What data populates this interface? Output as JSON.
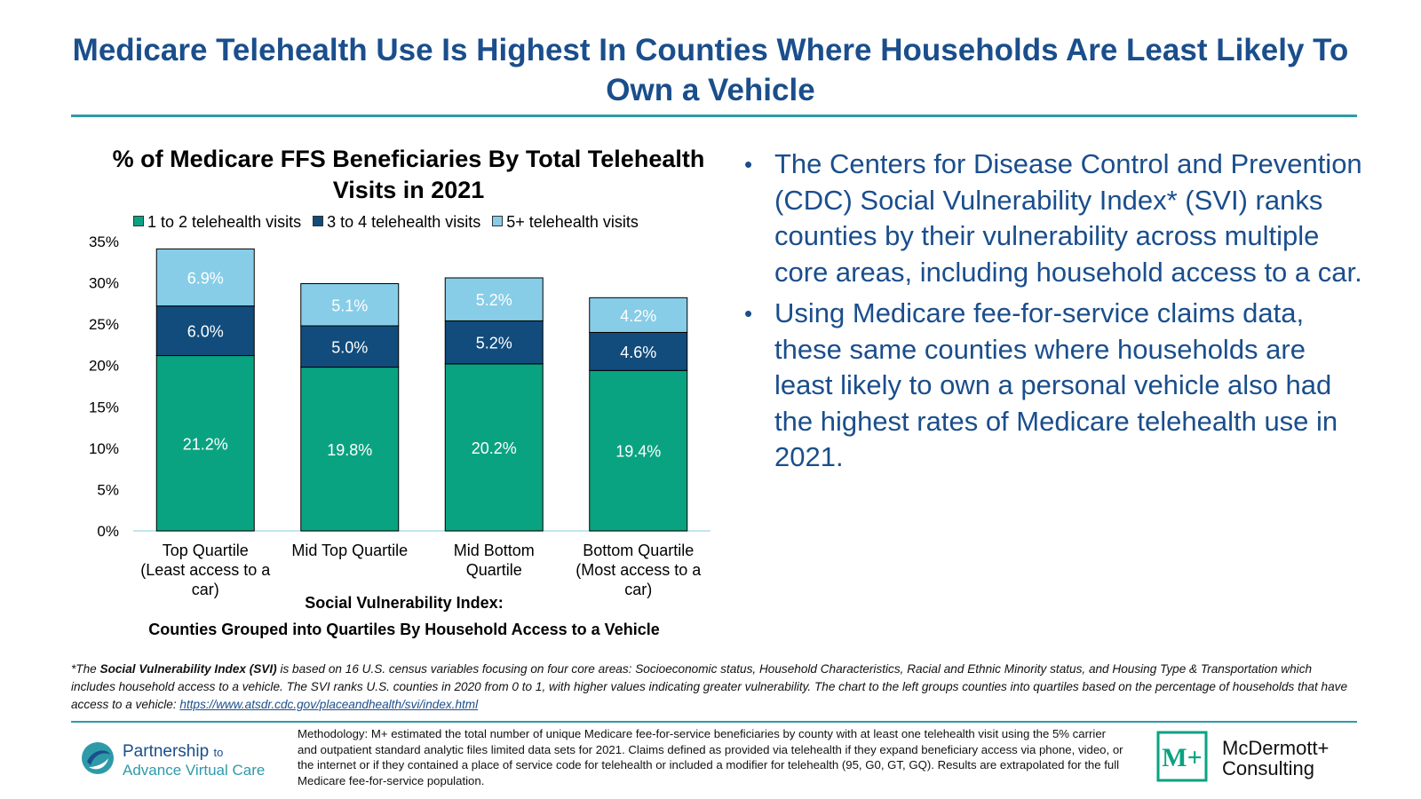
{
  "title": "Medicare Telehealth Use Is Highest In Counties Where Households Are Least Likely To Own a Vehicle",
  "colors": {
    "title": "#1a4e8c",
    "accent_rule": "#2e9aa8",
    "series1": "#0aa381",
    "series2": "#114c7c",
    "series3": "#87cde8"
  },
  "chart_data": {
    "type": "bar",
    "stacked": true,
    "title": "% of Medicare FFS Beneficiaries By Total Telehealth Visits in 2021",
    "categories": [
      "Top Quartile (Least access to a car)",
      "Mid Top Quartile",
      "Mid Bottom Quartile",
      "Bottom Quartile (Most access to a car)"
    ],
    "series": [
      {
        "name": "1 to 2 telehealth visits",
        "values": [
          21.2,
          19.8,
          20.2,
          19.4
        ],
        "labels": [
          "21.2%",
          "19.8%",
          "20.2%",
          "19.4%"
        ]
      },
      {
        "name": "3 to 4 telehealth visits",
        "values": [
          6.0,
          5.0,
          5.2,
          4.6
        ],
        "labels": [
          "6.0%",
          "5.0%",
          "5.2%",
          "4.6%"
        ]
      },
      {
        "name": "5+ telehealth visits",
        "values": [
          6.9,
          5.1,
          5.2,
          4.2
        ],
        "labels": [
          "6.9%",
          "5.1%",
          "5.2%",
          "4.2%"
        ]
      }
    ],
    "ylim": [
      0,
      35
    ],
    "yticks": [
      "0%",
      "5%",
      "10%",
      "15%",
      "20%",
      "25%",
      "30%",
      "35%"
    ],
    "category_label_lines": [
      [
        "Top Quartile",
        "(Least access to a",
        "car)"
      ],
      [
        "Mid Top Quartile"
      ],
      [
        "Mid Bottom",
        "Quartile"
      ],
      [
        "Bottom Quartile",
        "(Most access to a",
        "car)"
      ]
    ],
    "xlabel_line1": "Social Vulnerability Index:",
    "xlabel_line2": "Counties Grouped into Quartiles By Household Access to a Vehicle",
    "legend_position": "top",
    "grid": false
  },
  "bullets": [
    "The Centers for Disease Control and Prevention (CDC) Social Vulnerability Index* (SVI) ranks counties by their vulnerability across multiple core areas, including household access to a car.",
    "Using Medicare fee-for-service claims data, these same counties where households are least likely to own a personal vehicle also had the highest rates of Medicare telehealth use in 2021."
  ],
  "bullet_symbol": "•",
  "footnote": {
    "prefix": "*The ",
    "term": "Social Vulnerability Index (SVI)",
    "body": " is based on 16 U.S. census variables focusing on four core areas: Socioeconomic status, Household Characteristics, Racial and Ethnic Minority status, and Housing Type & Transportation which includes household access to a vehicle. The SVI ranks U.S. counties in 2020 from 0 to 1, with higher values indicating greater vulnerability. The chart to the left groups counties into quartiles based on the percentage of households that have access to a vehicle: ",
    "link": "https://www.atsdr.cdc.gov/placeandhealth/svi/index.html"
  },
  "methodology": "Methodology: M+ estimated the total number of unique Medicare fee-for-service beneficiaries by county with at least one telehealth visit using the 5% carrier and outpatient standard analytic files limited data sets for 2021. Claims defined as provided via telehealth if they expand beneficiary access via phone, video, or the internet or if they contained a place of service code for telehealth or included a modifier for telehealth (95, G0, GT, GQ). Results are extrapolated for the full Medicare fee-for-service population.",
  "logo_left": {
    "name_main": "Partnership",
    "name_small": "to",
    "name_line2": "Advance Virtual Care"
  },
  "logo_right": {
    "mark": "M+",
    "line1": "McDermott+",
    "line2": "Consulting"
  }
}
